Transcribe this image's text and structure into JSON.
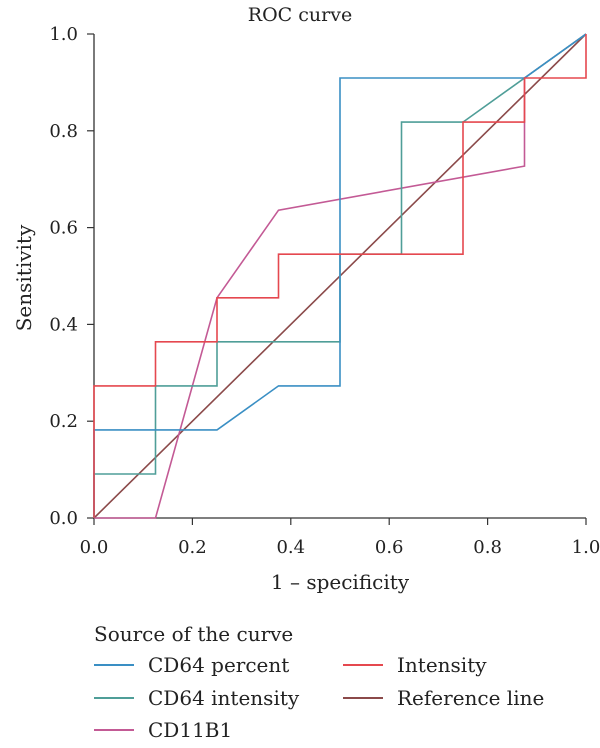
{
  "chart_data": {
    "type": "line",
    "title": "ROC curve",
    "xlabel": "1 – specificity",
    "ylabel": "Sensitivity",
    "xlim": [
      0,
      1
    ],
    "ylim": [
      0,
      1
    ],
    "xticks": [
      "0.0",
      "0.2",
      "0.4",
      "0.6",
      "0.8",
      "1.0"
    ],
    "yticks": [
      "0.0",
      "0.2",
      "0.4",
      "0.6",
      "0.8",
      "1.0"
    ],
    "grid": false,
    "legend_title": "Source of the curve",
    "legend_position": "bottom",
    "series": [
      {
        "name": "CD64 percent",
        "color": "#3a8fc4",
        "x": [
          0,
          0,
          0.25,
          0.375,
          0.5,
          0.5,
          0.875,
          1
        ],
        "y": [
          0,
          0.182,
          0.182,
          0.273,
          0.273,
          0.909,
          0.909,
          1
        ]
      },
      {
        "name": "CD64 intensity",
        "color": "#4f9e98",
        "x": [
          0,
          0,
          0.125,
          0.125,
          0.25,
          0.25,
          0.5,
          0.5,
          0.625,
          0.625,
          0.75,
          1
        ],
        "y": [
          0,
          0.091,
          0.091,
          0.273,
          0.273,
          0.364,
          0.364,
          0.545,
          0.545,
          0.818,
          0.818,
          1
        ]
      },
      {
        "name": "CD11B1",
        "color": "#c35a95",
        "x": [
          0,
          0.125,
          0.25,
          0.375,
          0.875,
          0.875,
          1
        ],
        "y": [
          0,
          0,
          0.455,
          0.636,
          0.727,
          0.909,
          1
        ]
      },
      {
        "name": "Intensity",
        "color": "#e5484f",
        "x": [
          0,
          0,
          0.125,
          0.125,
          0.25,
          0.25,
          0.375,
          0.375,
          0.75,
          0.75,
          0.875,
          0.875,
          1,
          1
        ],
        "y": [
          0,
          0.273,
          0.273,
          0.364,
          0.364,
          0.455,
          0.455,
          0.545,
          0.545,
          0.818,
          0.818,
          0.909,
          0.909,
          1
        ]
      },
      {
        "name": "Reference line",
        "color": "#8b4a4a",
        "x": [
          0,
          1
        ],
        "y": [
          0,
          1
        ]
      }
    ]
  },
  "legend": {
    "title": "Source of the curve",
    "items": [
      {
        "label": "CD64 percent",
        "color": "#3a8fc4"
      },
      {
        "label": "CD64 intensity",
        "color": "#4f9e98"
      },
      {
        "label": "CD11B1",
        "color": "#c35a95"
      },
      {
        "label": "Intensity",
        "color": "#e5484f"
      },
      {
        "label": "Reference line",
        "color": "#8b4a4a"
      }
    ]
  }
}
